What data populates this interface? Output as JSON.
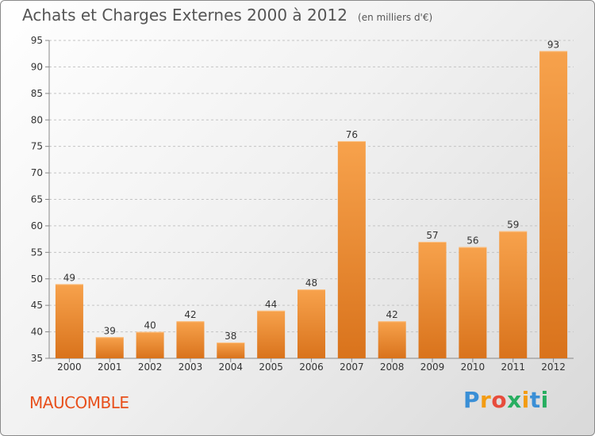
{
  "title": "Achats et Charges Externes 2000 à 2012",
  "subtitle": "(en milliers d'€)",
  "place": "MAUCOMBLE",
  "logo": {
    "letters": [
      {
        "ch": "P",
        "color": "#3a8fd6"
      },
      {
        "ch": "r",
        "color": "#f39c12"
      },
      {
        "ch": "o",
        "color": "#e74c3c"
      },
      {
        "ch": "x",
        "color": "#27ae60"
      },
      {
        "ch": "i",
        "color": "#f39c12"
      },
      {
        "ch": "t",
        "color": "#3a8fd6"
      },
      {
        "ch": "i",
        "color": "#27ae60"
      }
    ]
  },
  "colors": {
    "bar_light": "#f7a24c",
    "bar_dark": "#d9731c",
    "place": "#e8501c"
  },
  "chart_data": {
    "type": "bar",
    "categories": [
      "2000",
      "2001",
      "2002",
      "2003",
      "2004",
      "2005",
      "2006",
      "2007",
      "2008",
      "2009",
      "2010",
      "2011",
      "2012"
    ],
    "values": [
      49,
      39,
      40,
      42,
      38,
      44,
      48,
      76,
      42,
      57,
      56,
      59,
      93
    ],
    "ylim": [
      35,
      95
    ],
    "yticks": [
      35,
      40,
      45,
      50,
      55,
      60,
      65,
      70,
      75,
      80,
      85,
      90,
      95
    ],
    "grid": "horizontal dashed",
    "xlabel": "",
    "ylabel": ""
  }
}
